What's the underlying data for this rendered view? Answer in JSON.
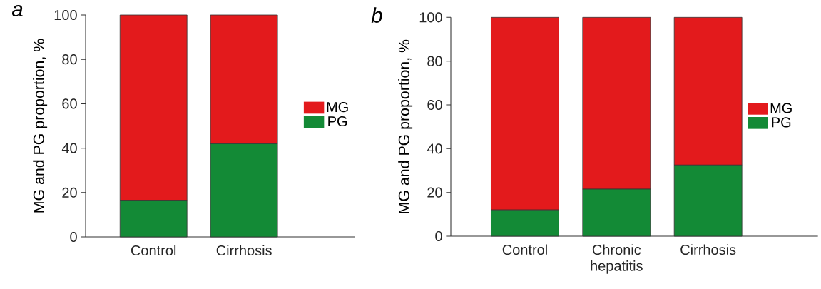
{
  "chart_data": [
    {
      "type": "bar",
      "title": "a",
      "ylabel": "MG and PG proportion, %",
      "categories": [
        "Control",
        "Cirrhosis"
      ],
      "stacked": true,
      "ylim": [
        0,
        100
      ],
      "yticks": [
        0,
        20,
        40,
        60,
        80,
        100
      ],
      "legend": "right",
      "series": [
        {
          "name": "PG",
          "color": "#138a36",
          "values": [
            16.5,
            42
          ]
        },
        {
          "name": "MG",
          "color": "#e31a1c",
          "values": [
            83.5,
            58
          ]
        }
      ]
    },
    {
      "type": "bar",
      "title": "b",
      "ylabel": "MG and PG proportion, %",
      "categories": [
        "Control",
        "Chronic hepatitis",
        "Cirrhosis"
      ],
      "stacked": true,
      "ylim": [
        0,
        100
      ],
      "yticks": [
        0,
        20,
        40,
        60,
        80,
        100
      ],
      "legend": "right",
      "series": [
        {
          "name": "PG",
          "color": "#138a36",
          "values": [
            12,
            21.5,
            32.5
          ]
        },
        {
          "name": "MG",
          "color": "#e31a1c",
          "values": [
            88,
            78.5,
            67.5
          ]
        }
      ]
    }
  ]
}
